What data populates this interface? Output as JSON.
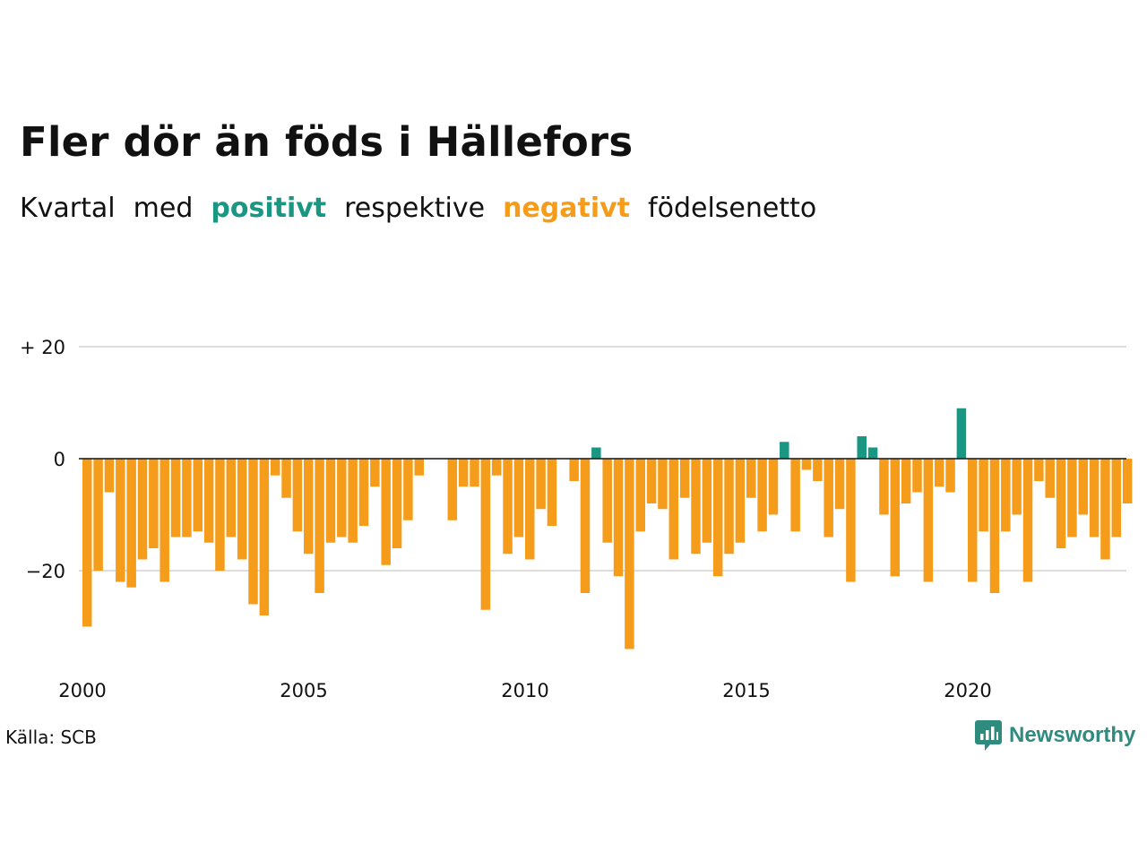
{
  "title": "Fler dör än föds i Hällefors",
  "subtitle": {
    "part1": "Kvartal",
    "part2": "med",
    "positive": "positivt",
    "part3": "respektive",
    "negative": "negativt",
    "part4": "födelsenetto"
  },
  "source": "Källa: SCB",
  "logo": {
    "text": "Newsworthy",
    "icon": "bar-chart-speech-bubble-icon"
  },
  "colors": {
    "positive": "#1a9783",
    "negative": "#f59d1b",
    "grid": "#dddddd",
    "zero_line": "#111111"
  },
  "chart_data": {
    "type": "bar",
    "title": "Fler dör än föds i Hällefors",
    "ylim": [
      -35,
      20
    ],
    "yticks": [
      {
        "value": 20,
        "label": "+ 20"
      },
      {
        "value": 0,
        "label": "0"
      },
      {
        "value": -20,
        "label": "−20"
      }
    ],
    "xticks": [
      {
        "value": 2000,
        "label": "2000"
      },
      {
        "value": 2005,
        "label": "2005"
      },
      {
        "value": 2010,
        "label": "2010"
      },
      {
        "value": 2015,
        "label": "2015"
      },
      {
        "value": 2020,
        "label": "2020"
      }
    ],
    "start": "2000 Q1",
    "grid": "horizontal",
    "series": [
      {
        "values": [
          -30,
          -20,
          -6,
          -22,
          -23,
          -18,
          -16,
          -22,
          -14,
          -14,
          -13,
          -15,
          -20,
          -14,
          -18,
          -26,
          -28,
          -3,
          -7,
          -13,
          -17,
          -24,
          -15,
          -14,
          -15,
          -12,
          -5,
          -19,
          -16,
          -11,
          -3,
          0,
          0,
          -11,
          -5,
          -5,
          -27,
          -3,
          -17,
          -14,
          -18,
          -9,
          -12,
          0,
          -4,
          -24,
          2,
          -15,
          -21,
          -34,
          -13,
          -8,
          -9,
          -18,
          -7,
          -17,
          -15,
          -21,
          -17,
          -15,
          -7,
          -13,
          -10,
          3,
          -13,
          -2,
          -4,
          -14,
          -9,
          -22,
          4,
          2,
          -10,
          -21,
          -8,
          -6,
          -22,
          -5,
          -6,
          9,
          -22,
          -13,
          -24,
          -13,
          -10,
          -22,
          -4,
          -7,
          -16,
          -14,
          -10,
          -14,
          -18,
          -14,
          -8
        ]
      }
    ]
  }
}
